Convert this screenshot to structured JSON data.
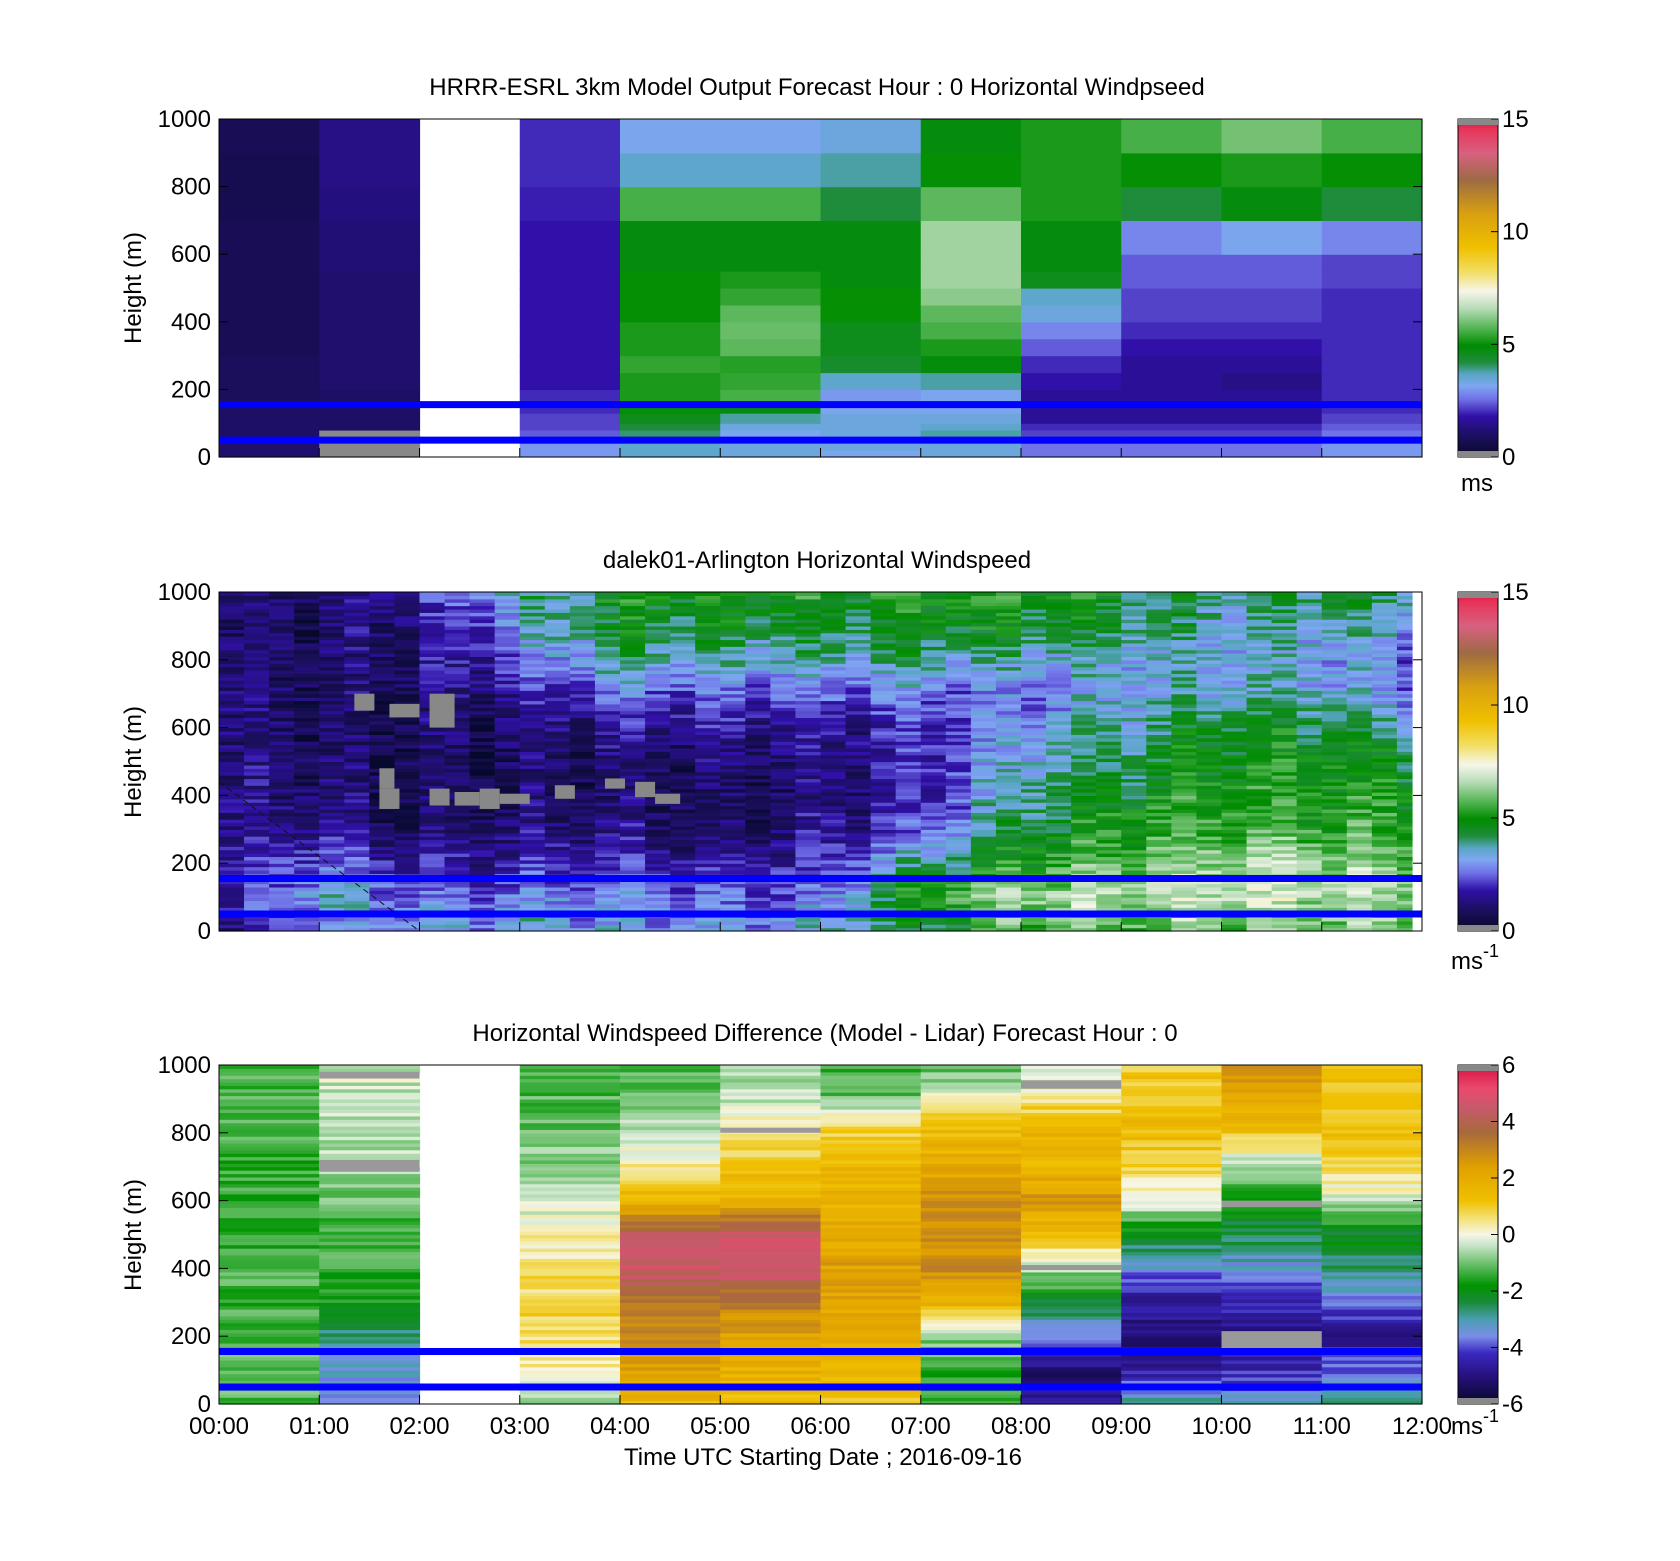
{
  "figure": {
    "xlabel": "Time UTC  Starting Date ; 2016-09-16",
    "xtick_labels": [
      "00:00",
      "01:00",
      "02:00",
      "03:00",
      "04:00",
      "05:00",
      "06:00",
      "07:00",
      "08:00",
      "09:00",
      "10:00",
      "11:00",
      "12:00"
    ]
  },
  "chart_data": [
    {
      "type": "heatmap",
      "title": "HRRR-ESRL 3km Model Output   Forecast Hour : 0 Horizontal Windpseed",
      "ylabel": "Height (m)",
      "xlim": [
        0,
        12
      ],
      "ylim": [
        0,
        1000
      ],
      "yticks": [
        0,
        200,
        400,
        600,
        800,
        1000
      ],
      "ytick_labels": [
        "0",
        "200",
        "400",
        "600",
        "800",
        "1000"
      ],
      "colorbar": {
        "min": 0,
        "max": 15,
        "ticks": [
          0,
          5,
          10,
          15
        ],
        "tick_labels": [
          "0",
          "5",
          "10",
          "15"
        ],
        "unit": "ms",
        "colormap": "windspeed"
      },
      "x_edges_hours": [
        0,
        1,
        2,
        3,
        4,
        5,
        6,
        7,
        8,
        9,
        10,
        11,
        12
      ],
      "levels_m": [
        0,
        20,
        40,
        60,
        80,
        100,
        130,
        160,
        200,
        250,
        300,
        350,
        400,
        450,
        500,
        550,
        600,
        700,
        800,
        900,
        1000
      ],
      "missing_columns_hours": [
        2
      ],
      "columns": [
        [
          1.1,
          1.1,
          1.1,
          1.0,
          1.0,
          1.0,
          1.0,
          0.9,
          0.9,
          0.9,
          0.8,
          0.8,
          0.8,
          0.8,
          0.8,
          0.8,
          0.8,
          0.7,
          0.7,
          0.8
        ],
        [
          0.3,
          0.3,
          0.3,
          0.3,
          1.0,
          1.0,
          1.0,
          1.0,
          1.1,
          1.1,
          1.1,
          1.1,
          1.1,
          1.1,
          1.1,
          1.2,
          1.2,
          1.3,
          1.4,
          1.4
        ],
        [
          null,
          null,
          null,
          null,
          null,
          null,
          null,
          null,
          null,
          null,
          null,
          null,
          null,
          null,
          null,
          null,
          null,
          null,
          null,
          null
        ],
        [
          3.0,
          3.0,
          2.6,
          2.4,
          2.2,
          2.2,
          2.0,
          2.0,
          1.8,
          1.8,
          1.8,
          1.8,
          1.8,
          1.8,
          1.8,
          1.8,
          1.8,
          1.9,
          2.0,
          2.0
        ],
        [
          3.6,
          3.6,
          3.8,
          4.0,
          4.2,
          4.6,
          5.0,
          5.2,
          5.2,
          5.4,
          5.2,
          5.2,
          5.0,
          5.0,
          5.0,
          4.8,
          4.8,
          5.6,
          3.6,
          3.2
        ],
        [
          3.4,
          3.4,
          3.4,
          3.2,
          3.4,
          3.8,
          4.8,
          5.6,
          5.4,
          5.3,
          5.8,
          5.9,
          5.8,
          5.4,
          5.2,
          4.8,
          4.8,
          5.6,
          3.6,
          3.2
        ],
        [
          3.2,
          3.4,
          3.4,
          3.4,
          3.4,
          3.4,
          3.2,
          3.0,
          3.6,
          4.4,
          4.6,
          4.6,
          5.0,
          5.0,
          4.8,
          4.8,
          4.8,
          4.2,
          3.8,
          3.4
        ],
        [
          3.4,
          3.4,
          3.6,
          3.8,
          3.6,
          3.4,
          3.2,
          3.2,
          3.8,
          4.8,
          5.2,
          5.6,
          5.8,
          6.2,
          6.4,
          6.4,
          6.4,
          5.8,
          5.0,
          4.8
        ],
        [
          2.6,
          2.6,
          2.4,
          2.2,
          2.0,
          1.6,
          1.6,
          1.6,
          1.8,
          2.0,
          2.4,
          2.8,
          3.4,
          3.6,
          4.6,
          4.8,
          4.8,
          5.2,
          5.2,
          5.2
        ],
        [
          2.6,
          2.6,
          2.4,
          2.2,
          2.0,
          1.6,
          1.6,
          1.6,
          1.6,
          1.6,
          1.8,
          2.0,
          2.2,
          2.2,
          2.4,
          2.4,
          2.8,
          4.2,
          5.0,
          5.6
        ],
        [
          2.6,
          2.6,
          2.4,
          2.2,
          2.0,
          1.6,
          1.6,
          1.6,
          1.4,
          1.6,
          1.8,
          2.0,
          2.2,
          2.2,
          2.4,
          2.4,
          3.2,
          4.8,
          5.2,
          6.0
        ],
        [
          3.0,
          3.0,
          2.8,
          2.6,
          2.4,
          2.2,
          2.0,
          2.0,
          2.0,
          2.0,
          2.0,
          2.0,
          2.0,
          2.0,
          2.2,
          2.2,
          2.8,
          4.2,
          5.0,
          5.6
        ]
      ],
      "overlay_lines_m": [
        50,
        155
      ]
    },
    {
      "type": "heatmap",
      "title": "dalek01-Arlington  Horizontal Windspeed",
      "ylabel": "Height (m)",
      "xlim": [
        0,
        12
      ],
      "ylim": [
        0,
        1000
      ],
      "yticks": [
        0,
        200,
        400,
        600,
        800,
        1000
      ],
      "ytick_labels": [
        "0",
        "200",
        "400",
        "600",
        "800",
        "1000"
      ],
      "colorbar": {
        "min": 0,
        "max": 15,
        "ticks": [
          0,
          5,
          10,
          15
        ],
        "tick_labels": [
          "0",
          "5",
          "10",
          "15"
        ],
        "unit": "ms",
        "unit_exponent": "-1",
        "colormap": "windspeed"
      },
      "data_extent_hours": [
        0,
        11.9
      ],
      "profile_interval_hours": 0.25,
      "profile_anchors_hours": [
        0,
        1,
        2,
        3,
        4,
        5,
        6,
        7,
        8,
        9,
        10,
        11,
        12
      ],
      "profile_anchor_levels_m": [
        0,
        100,
        200,
        300,
        400,
        500,
        600,
        700,
        800,
        900,
        1000
      ],
      "profile_anchor_speeds": [
        [
          1.2,
          1.5,
          1.5,
          1.4,
          1.3,
          1.2,
          1.2,
          1.2,
          1.1,
          1.0,
          1.0
        ],
        [
          2.4,
          3.5,
          2.6,
          1.6,
          1.2,
          1.0,
          0.9,
          1.0,
          1.0,
          1.0,
          1.1
        ],
        [
          3.0,
          2.6,
          1.6,
          1.0,
          0.8,
          0.8,
          0.9,
          1.0,
          1.2,
          1.4,
          1.6
        ],
        [
          3.2,
          2.8,
          1.8,
          1.2,
          0.9,
          1.0,
          1.1,
          1.6,
          2.4,
          3.2,
          3.6
        ],
        [
          3.2,
          3.0,
          2.0,
          1.4,
          1.0,
          1.1,
          1.6,
          2.6,
          4.0,
          4.6,
          4.8
        ],
        [
          2.8,
          2.4,
          1.6,
          1.0,
          0.8,
          1.0,
          1.5,
          2.4,
          3.6,
          4.4,
          5.0
        ],
        [
          3.4,
          2.6,
          1.8,
          1.4,
          1.2,
          1.3,
          1.6,
          2.6,
          3.6,
          4.4,
          5.0
        ],
        [
          4.2,
          5.4,
          4.0,
          2.2,
          1.8,
          1.8,
          2.0,
          2.6,
          4.0,
          4.8,
          5.2
        ],
        [
          5.8,
          6.4,
          5.2,
          4.4,
          4.0,
          3.6,
          3.0,
          2.6,
          3.6,
          4.6,
          5.0
        ],
        [
          5.8,
          6.6,
          5.8,
          5.2,
          4.8,
          4.2,
          3.8,
          3.4,
          3.4,
          4.2,
          4.6
        ],
        [
          6.0,
          6.8,
          6.4,
          5.6,
          5.2,
          4.8,
          4.6,
          3.6,
          3.4,
          3.6,
          4.0
        ],
        [
          6.0,
          6.6,
          6.4,
          5.6,
          5.2,
          5.0,
          4.6,
          3.6,
          3.2,
          3.8,
          4.4
        ],
        [
          5.8,
          6.4,
          6.0,
          5.2,
          5.0,
          4.6,
          3.6,
          2.6,
          2.4,
          3.2,
          4.0
        ]
      ],
      "missing_patches": [
        {
          "x": [
            1.35,
            1.55
          ],
          "y": [
            650,
            700
          ]
        },
        {
          "x": [
            1.7,
            2.0
          ],
          "y": [
            630,
            670
          ]
        },
        {
          "x": [
            2.1,
            2.35
          ],
          "y": [
            600,
            700
          ]
        },
        {
          "x": [
            1.6,
            1.75
          ],
          "y": [
            420,
            480
          ]
        },
        {
          "x": [
            1.6,
            1.8
          ],
          "y": [
            360,
            420
          ]
        },
        {
          "x": [
            2.1,
            2.3
          ],
          "y": [
            370,
            420
          ]
        },
        {
          "x": [
            2.35,
            2.6
          ],
          "y": [
            370,
            410
          ]
        },
        {
          "x": [
            2.6,
            2.8
          ],
          "y": [
            360,
            420
          ]
        },
        {
          "x": [
            2.8,
            3.1
          ],
          "y": [
            375,
            405
          ]
        },
        {
          "x": [
            3.35,
            3.55
          ],
          "y": [
            390,
            430
          ]
        },
        {
          "x": [
            3.85,
            4.05
          ],
          "y": [
            420,
            450
          ]
        },
        {
          "x": [
            4.15,
            4.35
          ],
          "y": [
            395,
            440
          ]
        },
        {
          "x": [
            4.35,
            4.6
          ],
          "y": [
            375,
            405
          ]
        }
      ],
      "dashed_line": {
        "from": [
          0,
          440
        ],
        "to": [
          2.0,
          0
        ]
      },
      "overlay_lines_m": [
        50,
        155
      ]
    },
    {
      "type": "heatmap",
      "title": "Horizontal Windspeed Difference (Model - Lidar) Forecast Hour : 0",
      "ylabel": "Height (m)",
      "xlabel": "Time UTC  Starting Date ; 2016-09-16",
      "xlim": [
        0,
        12
      ],
      "ylim": [
        0,
        1000
      ],
      "yticks": [
        0,
        200,
        400,
        600,
        800,
        1000
      ],
      "ytick_labels": [
        "0",
        "200",
        "400",
        "600",
        "800",
        "1000"
      ],
      "colorbar": {
        "min": -6,
        "max": 6,
        "ticks": [
          -6,
          -4,
          -2,
          0,
          2,
          4,
          6
        ],
        "tick_labels": [
          "-6",
          "-4",
          "-2",
          "0",
          "2",
          "4",
          "6"
        ],
        "unit": "ms",
        "unit_exponent": "-1",
        "colormap": "difference"
      },
      "x_edges_hours": [
        0,
        1,
        2,
        3,
        4,
        5,
        6,
        7,
        8,
        9,
        10,
        11,
        12
      ],
      "missing_columns_hours": [
        2
      ],
      "anchor_levels_m": [
        0,
        100,
        200,
        300,
        400,
        500,
        600,
        700,
        800,
        900,
        1000
      ],
      "columns_anchor_values": [
        [
          -1.2,
          -1.0,
          -1.4,
          -1.4,
          -1.3,
          -1.6,
          -1.5,
          -1.4,
          -1.3,
          -1.2,
          -1.2
        ],
        [
          -3.6,
          -3.4,
          -2.8,
          -1.8,
          -1.4,
          -1.4,
          -1.0,
          -0.6,
          -0.5,
          -0.4,
          -0.3
        ],
        [
          null,
          null,
          null,
          null,
          null,
          null,
          null,
          null,
          null,
          null,
          null
        ],
        [
          -0.8,
          0.2,
          0.6,
          0.8,
          0.6,
          0.2,
          -0.4,
          -0.8,
          -1.0,
          -1.2,
          -1.4
        ],
        [
          1.4,
          2.2,
          2.8,
          3.4,
          4.6,
          4.2,
          1.6,
          0.4,
          -0.4,
          -1.0,
          -1.2
        ],
        [
          1.4,
          1.8,
          2.2,
          3.2,
          4.6,
          4.6,
          1.8,
          1.2,
          0.4,
          -0.4,
          -0.8
        ],
        [
          1.2,
          1.6,
          1.8,
          2.2,
          2.4,
          2.0,
          1.8,
          1.5,
          1.0,
          -1.0,
          -1.6
        ],
        [
          -1.6,
          -1.4,
          -0.8,
          1.8,
          2.8,
          2.8,
          2.8,
          2.0,
          1.4,
          0.2,
          -1.4
        ],
        [
          -4.4,
          -5.2,
          -3.8,
          -2.2,
          -0.6,
          1.2,
          2.6,
          1.6,
          1.6,
          0.6,
          -0.4
        ],
        [
          -2.8,
          -4.6,
          -5.2,
          -4.6,
          -3.6,
          -2.0,
          -0.2,
          0.8,
          1.4,
          1.2,
          1.0
        ],
        [
          -3.2,
          -4.4,
          -5.0,
          -4.4,
          -3.4,
          -2.4,
          -1.6,
          -0.6,
          1.2,
          2.2,
          2.6
        ],
        [
          -2.8,
          -3.8,
          -4.8,
          -3.8,
          -2.8,
          -2.2,
          -0.4,
          0.8,
          1.2,
          1.2,
          1.2
        ]
      ],
      "missing_patches": [
        {
          "x": [
            10,
            11
          ],
          "y": [
            165,
            215
          ]
        },
        {
          "x": [
            1,
            2
          ],
          "y": [
            685,
            720
          ]
        },
        {
          "x": [
            1,
            2
          ],
          "y": [
            960,
            980
          ]
        },
        {
          "x": [
            5,
            6
          ],
          "y": [
            800,
            815
          ]
        },
        {
          "x": [
            8,
            9
          ],
          "y": [
            930,
            955
          ]
        },
        {
          "x": [
            10,
            11
          ],
          "y": [
            580,
            600
          ]
        },
        {
          "x": [
            8,
            9
          ],
          "y": [
            395,
            410
          ]
        }
      ],
      "overlay_lines_m": [
        50,
        155
      ]
    }
  ]
}
